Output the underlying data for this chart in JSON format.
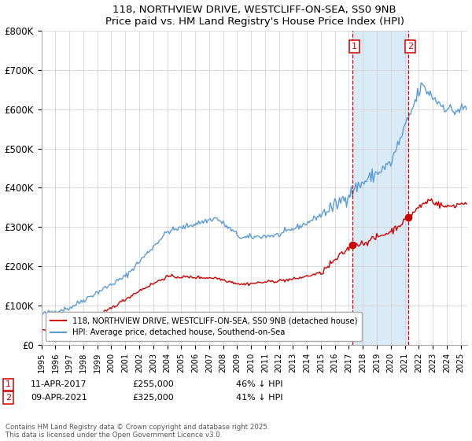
{
  "title1": "118, NORTHVIEW DRIVE, WESTCLIFF-ON-SEA, SS0 9NB",
  "title2": "Price paid vs. HM Land Registry's House Price Index (HPI)",
  "ylim": [
    0,
    800000
  ],
  "yticks": [
    0,
    100000,
    200000,
    300000,
    400000,
    500000,
    600000,
    700000,
    800000
  ],
  "ytick_labels": [
    "£0",
    "£100K",
    "£200K",
    "£300K",
    "£400K",
    "£500K",
    "£600K",
    "£700K",
    "£800K"
  ],
  "legend1": "118, NORTHVIEW DRIVE, WESTCLIFF-ON-SEA, SS0 9NB (detached house)",
  "legend2": "HPI: Average price, detached house, Southend-on-Sea",
  "footnote": "Contains HM Land Registry data © Crown copyright and database right 2025.\nThis data is licensed under the Open Government Licence v3.0.",
  "transaction1_date": 2017.28,
  "transaction1_price": 255000,
  "transaction1_label": "1",
  "transaction1_row": "11-APR-2017",
  "transaction1_price_str": "£255,000",
  "transaction1_pct": "46% ↓ HPI",
  "transaction2_date": 2021.28,
  "transaction2_price": 325000,
  "transaction2_label": "2",
  "transaction2_row": "09-APR-2021",
  "transaction2_price_str": "£325,000",
  "transaction2_pct": "41% ↓ HPI",
  "red_color": "#cc0000",
  "blue_color": "#5b9bd5",
  "shade_color": "#daeaf7",
  "bg_color": "#ffffff",
  "grid_color": "#cccccc",
  "xlim_left": 1995,
  "xlim_right": 2025.5
}
